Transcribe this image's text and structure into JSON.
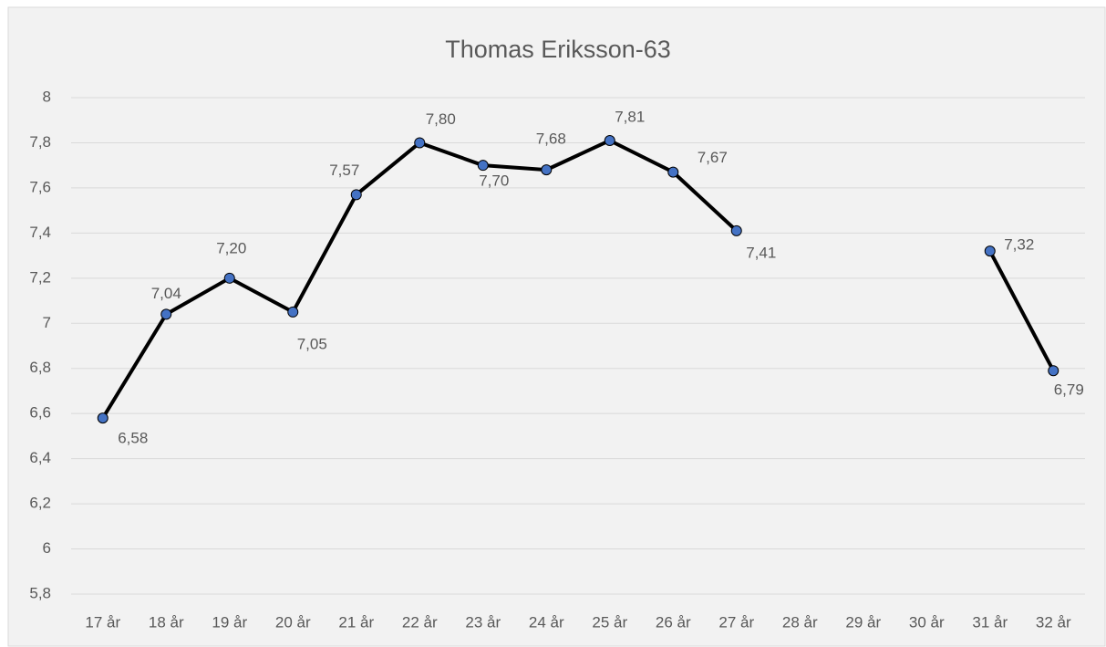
{
  "chart_data": {
    "type": "line",
    "title": "Thomas Eriksson-63",
    "categories": [
      "17 år",
      "18 år",
      "19 år",
      "20 år",
      "21 år",
      "22 år",
      "23 år",
      "24 år",
      "25 år",
      "26 år",
      "27 år",
      "28 år",
      "29 år",
      "30 år",
      "31 år",
      "32 år"
    ],
    "series": [
      {
        "name": "Thomas Eriksson-63",
        "color": "#4472c4",
        "line_color": "#000000",
        "values": [
          6.58,
          7.04,
          7.2,
          7.05,
          7.57,
          7.8,
          7.7,
          7.68,
          7.81,
          7.67,
          7.41,
          null,
          null,
          null,
          7.32,
          6.79
        ],
        "value_labels": [
          "6,58",
          "7,04",
          "7,20",
          "7,05",
          "7,57",
          "7,80",
          "7,70",
          "7,68",
          "7,81",
          "7,67",
          "7,41",
          null,
          null,
          null,
          "7,32",
          "6,79"
        ]
      }
    ],
    "ylim": [
      5.8,
      8
    ],
    "yticks": [
      {
        "value": 5.8,
        "label": "5,8"
      },
      6,
      {
        "value": 6.2,
        "label": "6,2"
      },
      {
        "value": 6.4,
        "label": "6,4"
      },
      {
        "value": 6.6,
        "label": "6,6"
      },
      {
        "value": 6.8,
        "label": "6,8"
      },
      7,
      {
        "value": 7.2,
        "label": "7,2"
      },
      {
        "value": 7.4,
        "label": "7,4"
      },
      {
        "value": 7.6,
        "label": "7,6"
      },
      {
        "value": 7.8,
        "label": "7,8"
      },
      8
    ],
    "grid": true
  }
}
